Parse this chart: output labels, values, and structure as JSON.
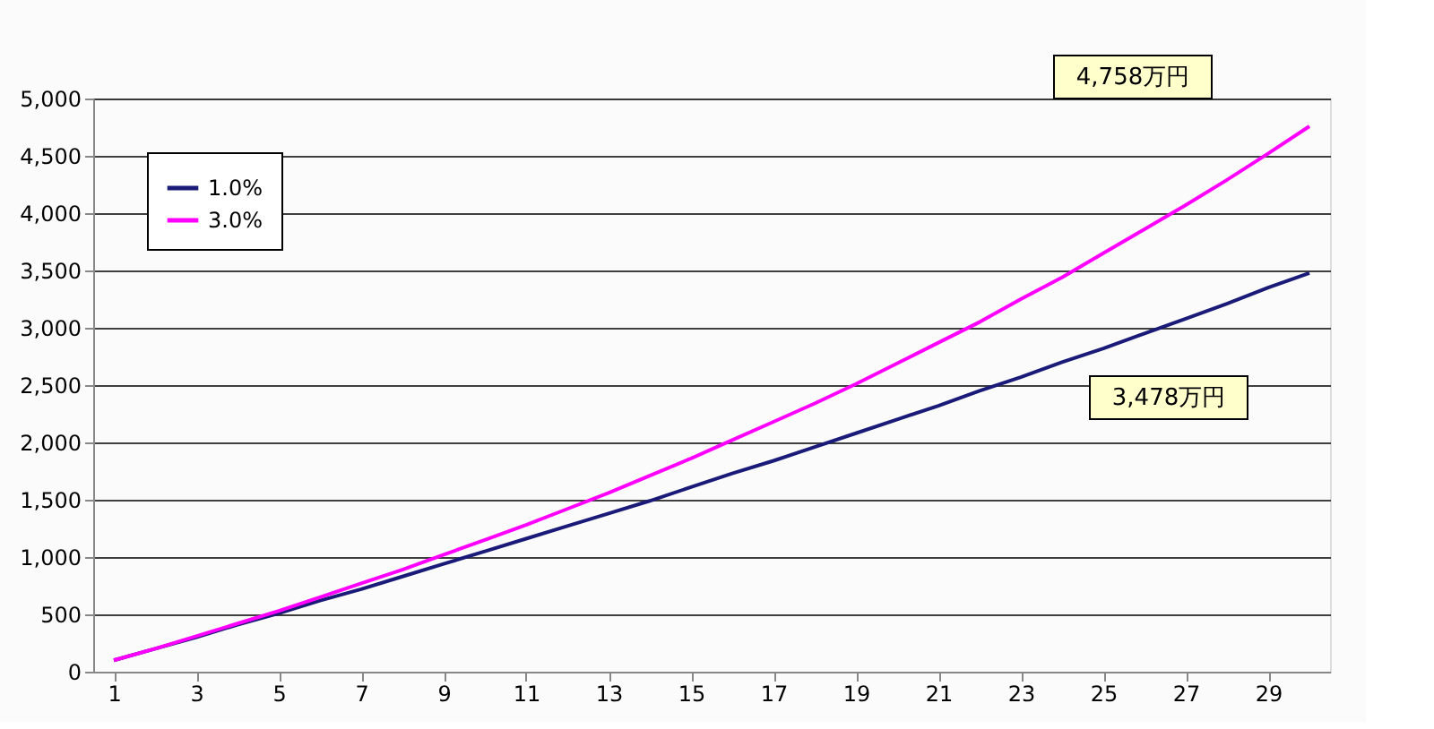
{
  "chart_data": {
    "type": "line",
    "x": [
      1,
      2,
      3,
      4,
      5,
      6,
      7,
      8,
      9,
      10,
      11,
      12,
      13,
      14,
      15,
      16,
      17,
      18,
      19,
      20,
      21,
      22,
      23,
      24,
      25,
      26,
      27,
      28,
      29,
      30
    ],
    "series": [
      {
        "name": "1.0%",
        "color": "#1a1a78",
        "values": [
          100,
          200,
          300,
          410,
          510,
          620,
          720,
          830,
          940,
          1050,
          1160,
          1270,
          1380,
          1490,
          1610,
          1730,
          1840,
          1960,
          2080,
          2200,
          2320,
          2450,
          2570,
          2700,
          2820,
          2950,
          3080,
          3210,
          3350,
          3478
        ]
      },
      {
        "name": "3.0%",
        "color": "#ff00ff",
        "values": [
          100,
          200,
          310,
          420,
          530,
          650,
          770,
          890,
          1020,
          1150,
          1280,
          1420,
          1560,
          1710,
          1860,
          2020,
          2180,
          2340,
          2510,
          2690,
          2870,
          3050,
          3250,
          3440,
          3650,
          3860,
          4070,
          4290,
          4520,
          4758
        ]
      }
    ],
    "annotations": [
      "4,758万円",
      "3,478万円"
    ],
    "xlim": [
      0.5,
      30.5
    ],
    "xticks": [
      1,
      3,
      5,
      7,
      9,
      11,
      13,
      15,
      17,
      19,
      21,
      23,
      25,
      27,
      29
    ],
    "ylim": [
      0,
      5000
    ],
    "yticks": [
      {
        "value": 0,
        "label": "0"
      },
      {
        "value": 500,
        "label": "500"
      },
      {
        "value": 1000,
        "label": "1,000"
      },
      {
        "value": 1500,
        "label": "1,500"
      },
      {
        "value": 2000,
        "label": "2,000"
      },
      {
        "value": 2500,
        "label": "2,500"
      },
      {
        "value": 3000,
        "label": "3,000"
      },
      {
        "value": 3500,
        "label": "3,500"
      },
      {
        "value": 4000,
        "label": "4,000"
      },
      {
        "value": 4500,
        "label": "4,500"
      },
      {
        "value": 5000,
        "label": "5,000"
      }
    ],
    "grid": "y",
    "legend": "top left",
    "marker": "none",
    "line_style": "solid"
  }
}
